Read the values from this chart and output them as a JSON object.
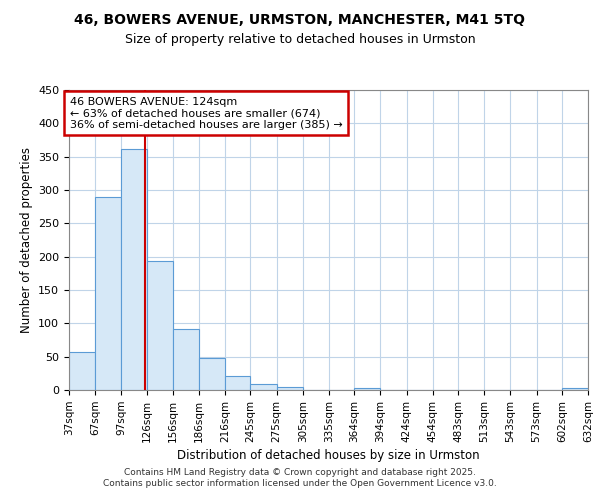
{
  "title_line1": "46, BOWERS AVENUE, URMSTON, MANCHESTER, M41 5TQ",
  "title_line2": "Size of property relative to detached houses in Urmston",
  "xlabel": "Distribution of detached houses by size in Urmston",
  "ylabel": "Number of detached properties",
  "bin_edges": [
    37,
    67,
    97,
    126,
    156,
    186,
    216,
    245,
    275,
    305,
    335,
    364,
    394,
    424,
    454,
    483,
    513,
    543,
    573,
    602,
    632
  ],
  "bar_heights": [
    57,
    290,
    362,
    193,
    91,
    48,
    21,
    9,
    4,
    0,
    0,
    3,
    0,
    0,
    0,
    0,
    0,
    0,
    0,
    3
  ],
  "bar_color": "#d6e8f7",
  "bar_edge_color": "#5b9bd5",
  "red_line_x": 124,
  "annotation_title": "46 BOWERS AVENUE: 124sqm",
  "annotation_line2": "← 63% of detached houses are smaller (674)",
  "annotation_line3": "36% of semi-detached houses are larger (385) →",
  "annotation_box_color": "#ffffff",
  "annotation_box_edge": "#cc0000",
  "red_line_color": "#cc0000",
  "ylim": [
    0,
    450
  ],
  "yticks": [
    0,
    50,
    100,
    150,
    200,
    250,
    300,
    350,
    400,
    450
  ],
  "background_color": "#ffffff",
  "grid_color": "#c0d4e8",
  "footer_line1": "Contains HM Land Registry data © Crown copyright and database right 2025.",
  "footer_line2": "Contains public sector information licensed under the Open Government Licence v3.0."
}
